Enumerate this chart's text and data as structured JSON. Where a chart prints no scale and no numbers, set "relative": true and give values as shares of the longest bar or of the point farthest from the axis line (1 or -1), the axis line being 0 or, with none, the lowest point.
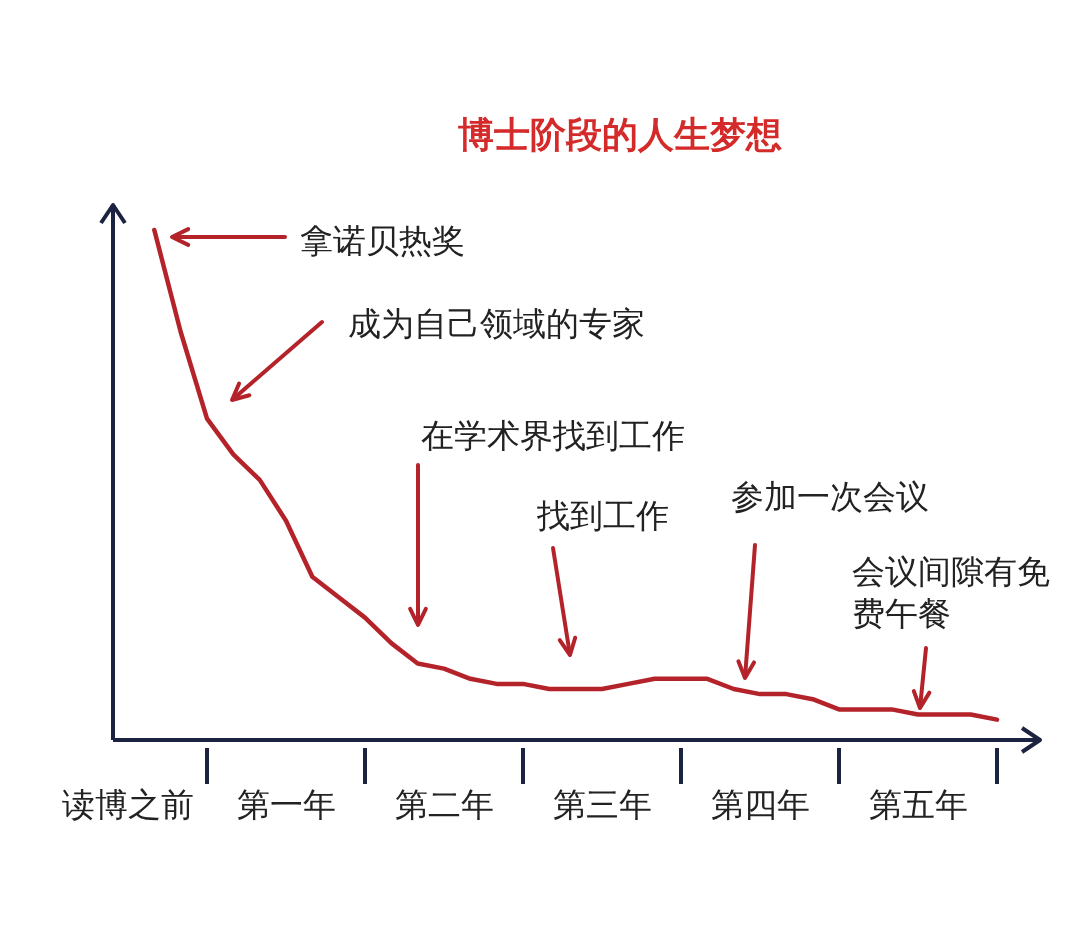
{
  "chart_data": {
    "type": "line",
    "title": "博士阶段的人生梦想",
    "relative": true,
    "color": "#b5232a",
    "categories": [
      "读博之前",
      null,
      null,
      null,
      null,
      null,
      "第一年",
      null,
      null,
      null,
      null,
      null,
      "第二年",
      null,
      null,
      null,
      null,
      null,
      "第三年",
      null,
      null,
      null,
      null,
      null,
      "第四年",
      null,
      null,
      null,
      null,
      null,
      "第五年",
      null,
      null,
      null
    ],
    "values": [
      null,
      1.0,
      0.8,
      0.63,
      0.56,
      0.51,
      0.43,
      0.32,
      0.28,
      0.24,
      0.19,
      0.15,
      0.14,
      0.12,
      0.11,
      0.11,
      0.1,
      0.1,
      0.1,
      0.11,
      0.12,
      0.12,
      0.12,
      0.1,
      0.09,
      0.09,
      0.08,
      0.06,
      0.06,
      0.06,
      0.05,
      0.05,
      0.05,
      0.04
    ],
    "annotations": [
      "拿诺贝热奖",
      "成为自己领域的专家",
      "在学术界找到工作",
      "找到工作",
      "参加一次会议",
      "会议间隙有免费午餐"
    ]
  }
}
